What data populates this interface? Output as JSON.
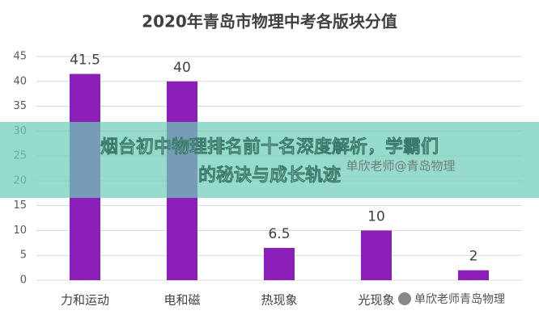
{
  "chart_data": {
    "type": "bar",
    "title": "2020年青岛市物理中考各版块分值",
    "categories": [
      "力和运动",
      "电和磁",
      "热现象",
      "光现象",
      null
    ],
    "values": [
      41.5,
      40,
      6.5,
      10,
      2
    ],
    "color": "#8b1fb8",
    "ylim": [
      0,
      45
    ],
    "yticks": [
      0,
      5,
      10,
      15,
      20,
      25,
      30,
      35,
      40,
      45
    ],
    "grid": true
  },
  "banner": [
    "烟台初中物理排名前十名深度解析，学霸们",
    "的秘诀与成长轨迹"
  ],
  "watermarks": [
    "单欣老师@青岛物理",
    "单欣老师青岛物理"
  ]
}
